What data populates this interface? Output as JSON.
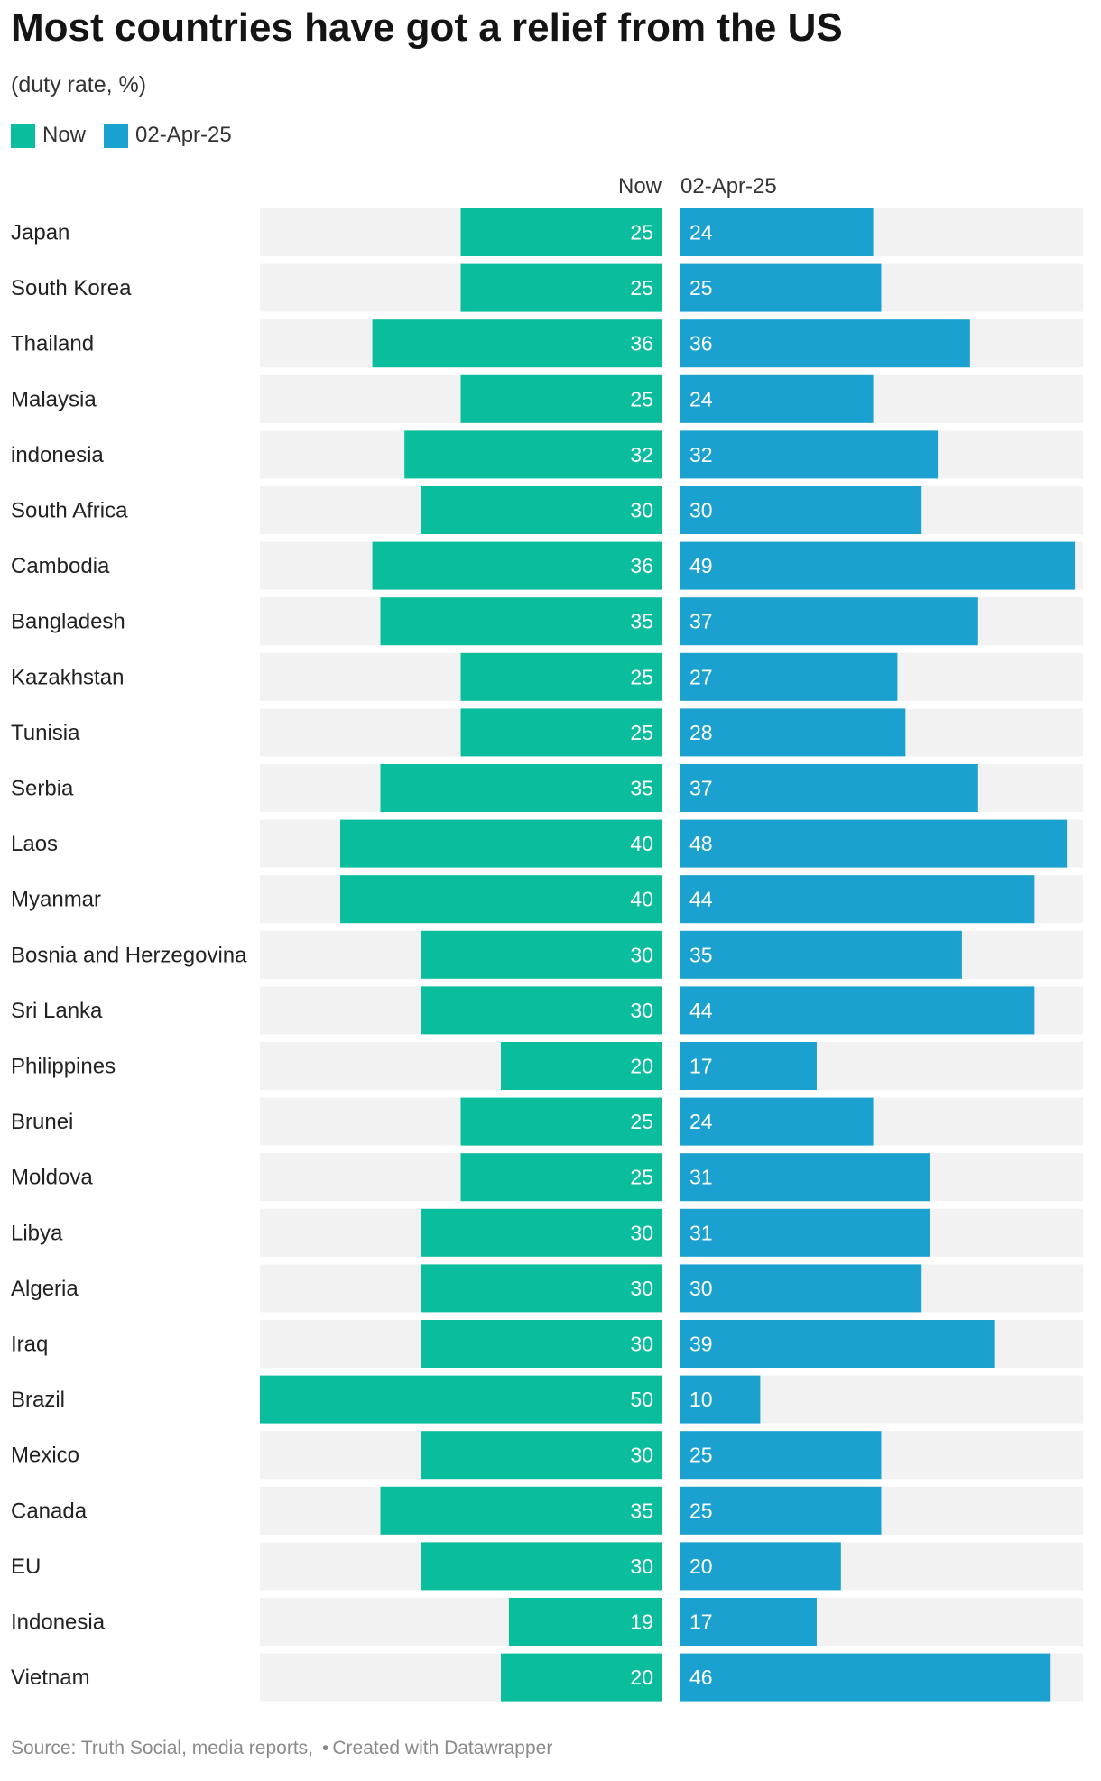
{
  "header": {
    "title": "Most countries have got a relief from the US",
    "subtitle": "(duty rate, %)"
  },
  "legend": [
    {
      "label": "Now",
      "color": "#0abd9d"
    },
    {
      "label": "02-Apr-25",
      "color": "#1aa1cf"
    }
  ],
  "footer": {
    "source": "Source: Truth Social, media reports,",
    "credit": "Created with Datawrapper"
  },
  "colors": {
    "now": "#0abd9d",
    "apr": "#1aa1cf",
    "background_track": "#f2f2f2",
    "label_text": "#ffffff"
  },
  "chart_data": {
    "type": "bar",
    "layout": "split-bars",
    "column_headers": [
      "Now",
      "02-Apr-25"
    ],
    "xlim": [
      0,
      50
    ],
    "categories": [
      "Japan",
      "South Korea",
      "Thailand",
      "Malaysia",
      "indonesia",
      "South Africa",
      "Cambodia",
      "Bangladesh",
      "Kazakhstan",
      "Tunisia",
      "Serbia",
      "Laos",
      "Myanmar",
      "Bosnia and Herzegovina",
      "Sri Lanka",
      "Philippines",
      "Brunei",
      "Moldova",
      "Libya",
      "Algeria",
      "Iraq",
      "Brazil",
      "Mexico",
      "Canada",
      "EU",
      "Indonesia",
      "Vietnam"
    ],
    "series": [
      {
        "name": "Now",
        "values": [
          25,
          25,
          36,
          25,
          32,
          30,
          36,
          35,
          25,
          25,
          35,
          40,
          40,
          30,
          30,
          20,
          25,
          25,
          30,
          30,
          30,
          50,
          30,
          35,
          30,
          19,
          20
        ]
      },
      {
        "name": "02-Apr-25",
        "values": [
          24,
          25,
          36,
          24,
          32,
          30,
          49,
          37,
          27,
          28,
          37,
          48,
          44,
          35,
          44,
          17,
          24,
          31,
          31,
          30,
          39,
          10,
          25,
          25,
          20,
          17,
          46
        ]
      }
    ]
  }
}
